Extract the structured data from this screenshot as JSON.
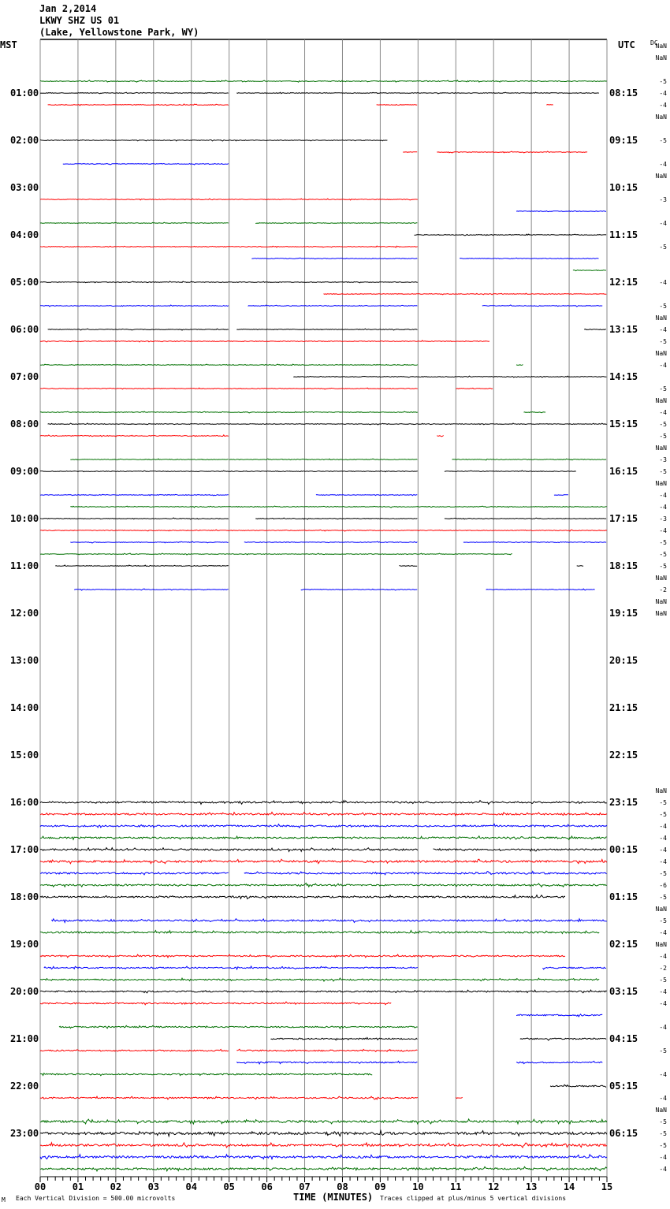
{
  "header": {
    "date": "Jan 2,2014",
    "station": "LKWY SHZ US 01",
    "location": "(Lake, Yellowstone Park, WY)"
  },
  "chart_data": {
    "type": "line",
    "title": "LKWY SHZ US 01 helicorder, Jan 2,2014",
    "left_axis_label": "MST",
    "right_axis_label": "UTC",
    "dc_label": "DC",
    "xlabel": "TIME (MINUTES)",
    "xlim": [
      0,
      15
    ],
    "x_ticks": [
      "00",
      "01",
      "02",
      "03",
      "04",
      "05",
      "06",
      "07",
      "08",
      "09",
      "10",
      "11",
      "12",
      "13",
      "14",
      "15"
    ],
    "scale_note": "Each Vertical Division =  500.00 microvolts",
    "clip_note": "Traces clipped at plus/minus 5 vertical divisions",
    "corner_mark": "M",
    "colors": [
      "#000000",
      "#ff0000",
      "#0000ff",
      "#007000"
    ],
    "hour_labels_mst": [
      "",
      "01:00",
      "02:00",
      "03:00",
      "04:00",
      "05:00",
      "06:00",
      "07:00",
      "08:00",
      "09:00",
      "10:00",
      "11:00",
      "12:00",
      "13:00",
      "14:00",
      "15:00",
      "16:00",
      "17:00",
      "18:00",
      "19:00",
      "20:00",
      "21:00",
      "22:00",
      "23:00"
    ],
    "hour_labels_utc": [
      "",
      "08:15",
      "09:15",
      "10:15",
      "11:15",
      "12:15",
      "13:15",
      "14:15",
      "15:15",
      "16:15",
      "17:15",
      "18:15",
      "19:15",
      "20:15",
      "21:15",
      "22:15",
      "23:15",
      "00:15",
      "01:15",
      "02:15",
      "03:15",
      "04:15",
      "05:15",
      "06:15"
    ],
    "rows_per_hour": 4,
    "dc_offsets": {
      "0": "NaN",
      "1": "NaN",
      "3": "-5",
      "4": "-4",
      "5": "-4",
      "6": "NaN",
      "8": "-5",
      "10": "-4",
      "11": "NaN",
      "13": "-3",
      "15": "-4",
      "17": "-5",
      "20": "-4",
      "22": "-5",
      "23": "NaN",
      "24": "-4",
      "25": "-5",
      "26": "NaN",
      "27": "-4",
      "29": "-5",
      "30": "NaN",
      "31": "-4",
      "32": "-5",
      "33": "-5",
      "34": "NaN",
      "35": "-3",
      "36": "-5",
      "37": "NaN",
      "38": "-4",
      "39": "-4",
      "40": "-3",
      "41": "-4",
      "42": "-5",
      "43": "-5",
      "44": "-5",
      "45": "NaN",
      "46": "-2",
      "47": "NaN",
      "48": "NaN",
      "63": "NaN",
      "64": "-5",
      "65": "-5",
      "66": "-4",
      "67": "-4",
      "68": "-4",
      "69": "-4",
      "70": "-5",
      "71": "-6",
      "72": "-5",
      "73": "NaN",
      "74": "-5",
      "75": "-4",
      "76": "NaN",
      "77": "-4",
      "78": "-2",
      "79": "-5",
      "80": "-4",
      "81": "-4",
      "83": "-4",
      "85": "-5",
      "87": "-4",
      "89": "-4",
      "90": "NaN",
      "91": "-5",
      "92": "-5",
      "93": "-5",
      "94": "-4",
      "95": "-4"
    },
    "traces": [
      {
        "row": 3,
        "amp": 0.5,
        "segments": [
          [
            0,
            15
          ]
        ]
      },
      {
        "row": 4,
        "amp": 0.4,
        "segments": [
          [
            0,
            5
          ],
          [
            5.2,
            14.8
          ]
        ]
      },
      {
        "row": 5,
        "amp": 0.4,
        "segments": [
          [
            0.2,
            5
          ],
          [
            8.9,
            10
          ],
          [
            13.4,
            13.6
          ]
        ]
      },
      {
        "row": 8,
        "amp": 0.4,
        "segments": [
          [
            0,
            9.2
          ]
        ]
      },
      {
        "row": 9,
        "amp": 0.4,
        "segments": [
          [
            9.6,
            10
          ],
          [
            10.5,
            14.5
          ]
        ]
      },
      {
        "row": 10,
        "amp": 0.4,
        "segments": [
          [
            0.6,
            5
          ]
        ]
      },
      {
        "row": 13,
        "amp": 0.4,
        "segments": [
          [
            0,
            10
          ]
        ]
      },
      {
        "row": 14,
        "amp": 0.4,
        "segments": [
          [
            12.6,
            15
          ]
        ]
      },
      {
        "row": 15,
        "amp": 0.4,
        "segments": [
          [
            0,
            5
          ],
          [
            5.7,
            10
          ]
        ]
      },
      {
        "row": 16,
        "amp": 0.4,
        "segments": [
          [
            9.9,
            15
          ]
        ]
      },
      {
        "row": 17,
        "amp": 0.4,
        "segments": [
          [
            0,
            10
          ]
        ]
      },
      {
        "row": 18,
        "amp": 0.4,
        "segments": [
          [
            5.6,
            10
          ],
          [
            11.1,
            14.8
          ]
        ]
      },
      {
        "row": 19,
        "amp": 0.4,
        "segments": [
          [
            14.1,
            15
          ]
        ]
      },
      {
        "row": 20,
        "amp": 0.4,
        "segments": [
          [
            0,
            10
          ]
        ]
      },
      {
        "row": 21,
        "amp": 0.4,
        "segments": [
          [
            7.5,
            15
          ]
        ]
      },
      {
        "row": 22,
        "amp": 0.4,
        "segments": [
          [
            0,
            5
          ],
          [
            5.5,
            10
          ],
          [
            11.7,
            14.9
          ]
        ]
      },
      {
        "row": 24,
        "amp": 0.4,
        "segments": [
          [
            0.2,
            5
          ],
          [
            5.2,
            10
          ],
          [
            14.4,
            15
          ]
        ]
      },
      {
        "row": 25,
        "amp": 0.4,
        "segments": [
          [
            0,
            11.9
          ]
        ]
      },
      {
        "row": 27,
        "amp": 0.4,
        "segments": [
          [
            0,
            10
          ],
          [
            12.6,
            12.8
          ]
        ]
      },
      {
        "row": 28,
        "amp": 0.4,
        "segments": [
          [
            6.7,
            15
          ]
        ]
      },
      {
        "row": 29,
        "amp": 0.4,
        "segments": [
          [
            0,
            10
          ],
          [
            11,
            12
          ]
        ]
      },
      {
        "row": 31,
        "amp": 0.4,
        "segments": [
          [
            0,
            10
          ],
          [
            12.8,
            13.4
          ]
        ]
      },
      {
        "row": 32,
        "amp": 0.4,
        "segments": [
          [
            0.2,
            15
          ]
        ]
      },
      {
        "row": 33,
        "amp": 0.5,
        "segments": [
          [
            0,
            5
          ],
          [
            10.5,
            10.7
          ]
        ]
      },
      {
        "row": 35,
        "amp": 0.4,
        "segments": [
          [
            0.8,
            5
          ],
          [
            5,
            10
          ],
          [
            10.9,
            15
          ]
        ]
      },
      {
        "row": 36,
        "amp": 0.4,
        "segments": [
          [
            0,
            10
          ],
          [
            10.7,
            14.2
          ]
        ]
      },
      {
        "row": 38,
        "amp": 0.4,
        "segments": [
          [
            0,
            5
          ],
          [
            7.3,
            10
          ],
          [
            13.6,
            14
          ]
        ]
      },
      {
        "row": 39,
        "amp": 0.4,
        "segments": [
          [
            0.8,
            15
          ]
        ]
      },
      {
        "row": 40,
        "amp": 0.4,
        "segments": [
          [
            0,
            5
          ],
          [
            5.7,
            10
          ],
          [
            10.7,
            15
          ]
        ]
      },
      {
        "row": 41,
        "amp": 0.4,
        "segments": [
          [
            0,
            15
          ]
        ]
      },
      {
        "row": 42,
        "amp": 0.4,
        "segments": [
          [
            0.8,
            5
          ],
          [
            5.4,
            10
          ],
          [
            11.2,
            15
          ]
        ]
      },
      {
        "row": 43,
        "amp": 0.4,
        "segments": [
          [
            0,
            12.5
          ]
        ]
      },
      {
        "row": 44,
        "amp": 0.4,
        "segments": [
          [
            0.4,
            5
          ],
          [
            9.5,
            10
          ],
          [
            14.2,
            14.4
          ]
        ]
      },
      {
        "row": 46,
        "amp": 0.4,
        "segments": [
          [
            0.9,
            5
          ],
          [
            6.9,
            10
          ],
          [
            11.8,
            14.7
          ]
        ]
      },
      {
        "row": 64,
        "amp": 1.0,
        "segments": [
          [
            0,
            15
          ]
        ]
      },
      {
        "row": 65,
        "amp": 1.0,
        "segments": [
          [
            0,
            15
          ]
        ]
      },
      {
        "row": 66,
        "amp": 1.0,
        "segments": [
          [
            0,
            15
          ]
        ]
      },
      {
        "row": 67,
        "amp": 1.0,
        "segments": [
          [
            0,
            15
          ]
        ]
      },
      {
        "row": 68,
        "amp": 1.0,
        "segments": [
          [
            0,
            10
          ],
          [
            10.4,
            15
          ]
        ]
      },
      {
        "row": 69,
        "amp": 1.2,
        "segments": [
          [
            0,
            15
          ]
        ]
      },
      {
        "row": 70,
        "amp": 1.0,
        "segments": [
          [
            0,
            5
          ],
          [
            5.4,
            15
          ]
        ]
      },
      {
        "row": 71,
        "amp": 1.0,
        "segments": [
          [
            0,
            15
          ]
        ]
      },
      {
        "row": 72,
        "amp": 1.0,
        "segments": [
          [
            0,
            13.9
          ]
        ]
      },
      {
        "row": 74,
        "amp": 1.0,
        "segments": [
          [
            0.3,
            15
          ]
        ]
      },
      {
        "row": 75,
        "amp": 1.0,
        "segments": [
          [
            0,
            14.8
          ]
        ]
      },
      {
        "row": 77,
        "amp": 0.8,
        "segments": [
          [
            0,
            13.9
          ]
        ]
      },
      {
        "row": 78,
        "amp": 0.8,
        "segments": [
          [
            0.1,
            10
          ],
          [
            13.3,
            15
          ]
        ]
      },
      {
        "row": 79,
        "amp": 0.8,
        "segments": [
          [
            0,
            14.8
          ]
        ]
      },
      {
        "row": 80,
        "amp": 0.8,
        "segments": [
          [
            0,
            15
          ]
        ]
      },
      {
        "row": 81,
        "amp": 0.8,
        "segments": [
          [
            0,
            9.3
          ]
        ]
      },
      {
        "row": 82,
        "amp": 0.8,
        "segments": [
          [
            12.6,
            14.9
          ]
        ]
      },
      {
        "row": 83,
        "amp": 0.8,
        "segments": [
          [
            0.5,
            10
          ]
        ]
      },
      {
        "row": 84,
        "amp": 0.8,
        "segments": [
          [
            6.1,
            10
          ],
          [
            12.7,
            15
          ]
        ]
      },
      {
        "row": 85,
        "amp": 0.8,
        "segments": [
          [
            0,
            5
          ],
          [
            5.2,
            10
          ]
        ]
      },
      {
        "row": 86,
        "amp": 0.8,
        "segments": [
          [
            5.2,
            10
          ],
          [
            12.6,
            14.9
          ]
        ]
      },
      {
        "row": 87,
        "amp": 0.8,
        "segments": [
          [
            0,
            8.8
          ]
        ]
      },
      {
        "row": 88,
        "amp": 0.8,
        "segments": [
          [
            13.5,
            15
          ]
        ]
      },
      {
        "row": 89,
        "amp": 0.8,
        "segments": [
          [
            0,
            10
          ],
          [
            11,
            11.2
          ]
        ]
      },
      {
        "row": 91,
        "amp": 1.3,
        "segments": [
          [
            0,
            15
          ]
        ]
      },
      {
        "row": 92,
        "amp": 1.5,
        "segments": [
          [
            0,
            15
          ]
        ]
      },
      {
        "row": 93,
        "amp": 1.3,
        "segments": [
          [
            0,
            15
          ]
        ]
      },
      {
        "row": 94,
        "amp": 1.3,
        "segments": [
          [
            0,
            15
          ]
        ]
      },
      {
        "row": 95,
        "amp": 1.2,
        "segments": [
          [
            0,
            15
          ]
        ]
      }
    ]
  }
}
